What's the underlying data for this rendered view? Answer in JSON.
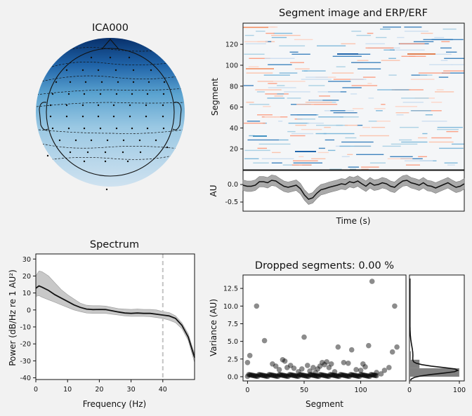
{
  "topomap": {
    "title": "ICA000",
    "colors": {
      "dark": "#08306b",
      "mid": "#6aaed6",
      "light": "#cde1f0"
    }
  },
  "segment_image": {
    "title": "Segment image and ERP/ERF",
    "ylabel": "Segment",
    "yticks": [
      "20",
      "40",
      "60",
      "80",
      "100",
      "120"
    ]
  },
  "erp": {
    "ylabel": "AU",
    "xlabel": "Time (s)",
    "yticks": [
      "0.0",
      "-0.5"
    ]
  },
  "spectrum": {
    "title": "Spectrum",
    "xlabel": "Frequency (Hz)",
    "ylabel": "Power (dB/Hz re 1 AU²)",
    "xticks": [
      "0",
      "10",
      "20",
      "30",
      "40"
    ],
    "yticks": [
      "30",
      "20",
      "10",
      "0",
      "-10",
      "-20",
      "-30",
      "-40"
    ]
  },
  "dropped": {
    "title": "Dropped segments: 0.00 %",
    "xlabel": "Segment",
    "ylabel": "Variance (AU)",
    "xticks": [
      "0",
      "50",
      "100"
    ],
    "yticks": [
      "0.0",
      "2.5",
      "5.0",
      "7.5",
      "10.0",
      "12.5"
    ],
    "hist_xticks": [
      "0",
      "100"
    ]
  },
  "chart_data": [
    {
      "type": "line",
      "name": "spectrum",
      "xlim": [
        0,
        50
      ],
      "ylim": [
        -41,
        33
      ],
      "x": [
        0,
        1,
        2,
        4,
        6,
        8,
        10,
        12,
        14,
        16,
        18,
        20,
        22,
        24,
        26,
        28,
        30,
        32,
        34,
        36,
        38,
        40,
        42,
        44,
        46,
        48,
        50
      ],
      "mean": [
        12.8,
        14.2,
        13.4,
        11.5,
        9,
        7,
        5,
        3,
        1.5,
        0.5,
        0.2,
        0.3,
        0.2,
        -0.5,
        -1.2,
        -1.8,
        -2,
        -1.8,
        -2,
        -2,
        -2.5,
        -3,
        -3.5,
        -5,
        -9,
        -16,
        -28
      ],
      "upper": [
        20,
        23,
        22.5,
        20,
        16,
        12,
        9,
        6.5,
        4,
        2.8,
        2.5,
        2.5,
        2.3,
        1.5,
        0.8,
        0.5,
        0.3,
        0.5,
        0.3,
        0.3,
        0,
        -1,
        -1.5,
        -3.5,
        -7.5,
        -14,
        -26
      ],
      "lower": [
        8,
        8.5,
        7.5,
        6,
        4.5,
        3,
        1.5,
        0,
        -1,
        -1.8,
        -2,
        -2,
        -2,
        -2.5,
        -3,
        -3.5,
        -3.8,
        -3.8,
        -3.8,
        -4,
        -4.5,
        -5,
        -6,
        -7.5,
        -11,
        -18,
        -31
      ],
      "vline": 40
    },
    {
      "type": "scatter",
      "name": "dropped-segments",
      "xlim": [
        -4,
        140
      ],
      "ylim": [
        -0.6,
        14.4
      ],
      "points": [
        [
          0,
          2.0
        ],
        [
          2,
          3.0
        ],
        [
          8,
          10.0
        ],
        [
          15,
          5.1
        ],
        [
          22,
          1.8
        ],
        [
          25,
          1.5
        ],
        [
          28,
          1.0
        ],
        [
          31,
          2.4
        ],
        [
          33,
          2.2
        ],
        [
          35,
          1.3
        ],
        [
          38,
          1.6
        ],
        [
          41,
          1.2
        ],
        [
          45,
          0.7
        ],
        [
          48,
          1.1
        ],
        [
          50,
          5.6
        ],
        [
          53,
          1.6
        ],
        [
          55,
          0.8
        ],
        [
          58,
          1.3
        ],
        [
          60,
          0.6
        ],
        [
          62,
          1.1
        ],
        [
          64,
          1.5
        ],
        [
          66,
          2.0
        ],
        [
          68,
          1.7
        ],
        [
          70,
          2.1
        ],
        [
          72,
          1.3
        ],
        [
          74,
          1.8
        ],
        [
          77,
          0.7
        ],
        [
          80,
          4.2
        ],
        [
          85,
          2.0
        ],
        [
          89,
          1.9
        ],
        [
          92,
          3.8
        ],
        [
          96,
          1.0
        ],
        [
          100,
          0.9
        ],
        [
          102,
          1.8
        ],
        [
          104,
          1.4
        ],
        [
          107,
          4.4
        ],
        [
          110,
          13.5
        ],
        [
          114,
          0.6
        ],
        [
          118,
          0.4
        ],
        [
          121,
          0.9
        ],
        [
          125,
          1.3
        ],
        [
          128,
          3.5
        ],
        [
          130,
          10.0
        ],
        [
          132,
          4.2
        ]
      ],
      "baseline_count": 115,
      "histogram": {
        "bins": [
          [
            0,
            1.2,
            100
          ],
          [
            1.2,
            2.4,
            20
          ],
          [
            2.4,
            3.6,
            3
          ]
        ],
        "xlim": [
          0,
          110
        ]
      }
    },
    {
      "type": "line",
      "name": "erp",
      "ylim": [
        -0.7,
        0.3
      ],
      "mean": [
        -0.02,
        -0.05,
        -0.05,
        -0.02,
        0.08,
        0.08,
        0.05,
        0.12,
        0.1,
        0.02,
        -0.05,
        -0.08,
        -0.05,
        -0.02,
        -0.12,
        -0.3,
        -0.42,
        -0.38,
        -0.25,
        -0.15,
        -0.12,
        -0.08,
        -0.05,
        -0.02,
        0.02,
        0.0,
        0.08,
        0.05,
        0.1,
        0.02,
        -0.05,
        0.05,
        -0.02,
        0.0,
        0.05,
        0.02,
        -0.05,
        -0.08,
        0.02,
        0.1,
        0.12,
        0.05,
        0.02,
        -0.02,
        0.05,
        -0.03,
        -0.05,
        -0.1,
        -0.05,
        0.0,
        0.05,
        -0.02,
        -0.08,
        -0.05,
        0.02
      ],
      "sd": 0.15
    }
  ]
}
